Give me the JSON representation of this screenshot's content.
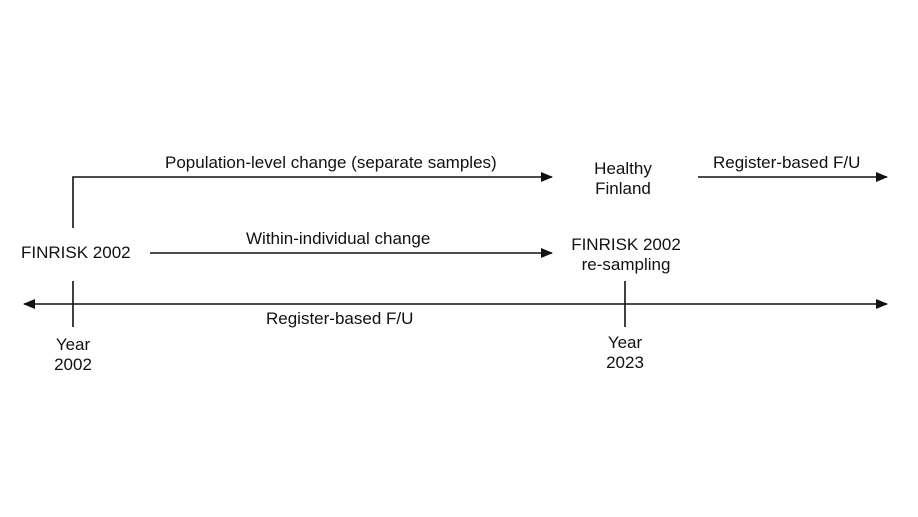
{
  "colors": {
    "ink": "#111111",
    "background": "#ffffff"
  },
  "labels": {
    "population_change": "Population-level change (separate samples)",
    "healthy_finland_line1": "Healthy",
    "healthy_finland_line2": "Finland",
    "register_fu_top": "Register-based F/U",
    "finrisk_2002": "FINRISK 2002",
    "within_change": "Within-individual change",
    "finrisk_resampling_line1": "FINRISK 2002",
    "finrisk_resampling_line2": "re-sampling",
    "register_fu_timeline": "Register-based F/U",
    "year_2002_line1": "Year",
    "year_2002_line2": "2002",
    "year_2023_line1": "Year",
    "year_2023_line2": "2023"
  }
}
